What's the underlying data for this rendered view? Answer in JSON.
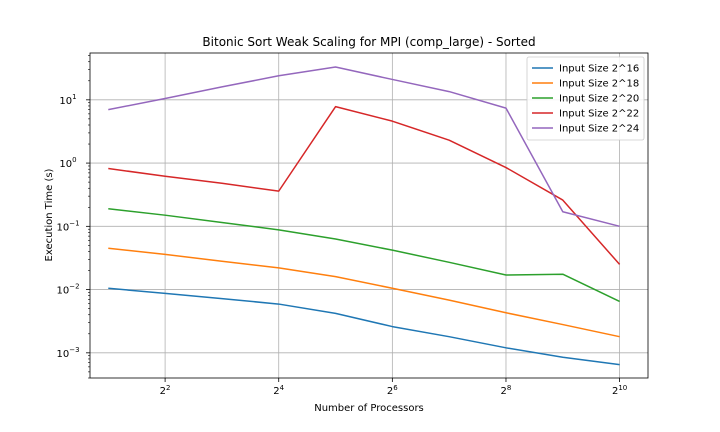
{
  "chart_data": {
    "type": "line",
    "title": "Bitonic Sort Weak Scaling for MPI (comp_large) - Sorted",
    "xlabel": "Number of Processors",
    "ylabel": "Execution Time (s)",
    "x_scale": "log2",
    "y_scale": "log10",
    "xlim": [
      1.6,
      1448
    ],
    "ylim": [
      0.0004,
      55
    ],
    "x_ticks": [
      {
        "value": 4,
        "base": "2",
        "exp": "2"
      },
      {
        "value": 16,
        "base": "2",
        "exp": "4"
      },
      {
        "value": 64,
        "base": "2",
        "exp": "6"
      },
      {
        "value": 256,
        "base": "2",
        "exp": "8"
      },
      {
        "value": 1024,
        "base": "2",
        "exp": "10"
      }
    ],
    "y_ticks": [
      {
        "value": 0.001,
        "base": "10",
        "exp": "−3"
      },
      {
        "value": 0.01,
        "base": "10",
        "exp": "−2"
      },
      {
        "value": 0.1,
        "base": "10",
        "exp": "−1"
      },
      {
        "value": 1,
        "base": "10",
        "exp": "0"
      },
      {
        "value": 10,
        "base": "10",
        "exp": "1"
      }
    ],
    "grid": true,
    "legend_position": "top-right",
    "x": [
      2,
      4,
      8,
      16,
      32,
      64,
      128,
      256,
      512,
      1024
    ],
    "series": [
      {
        "name": "Input Size 2^16",
        "color": "#1f77b4",
        "values": [
          0.0105,
          0.0087,
          0.0072,
          0.0059,
          0.0042,
          0.0026,
          0.0018,
          0.0012,
          0.00085,
          0.00065
        ]
      },
      {
        "name": "Input Size 2^18",
        "color": "#ff7f0e",
        "values": [
          0.045,
          0.036,
          0.028,
          0.022,
          0.016,
          0.0105,
          0.0068,
          0.0043,
          0.0028,
          0.0018
        ]
      },
      {
        "name": "Input Size 2^20",
        "color": "#2ca02c",
        "values": [
          0.19,
          0.15,
          0.115,
          0.088,
          0.063,
          0.042,
          0.027,
          0.017,
          0.0175,
          0.0065
        ]
      },
      {
        "name": "Input Size 2^22",
        "color": "#d62728",
        "values": [
          0.82,
          0.62,
          0.48,
          0.36,
          7.8,
          4.6,
          2.3,
          0.85,
          0.26,
          0.025
        ]
      },
      {
        "name": "Input Size 2^24",
        "color": "#9467bd",
        "values": [
          7.0,
          10.5,
          16,
          24,
          33,
          21,
          13.5,
          7.4,
          0.17,
          0.1
        ]
      }
    ]
  }
}
